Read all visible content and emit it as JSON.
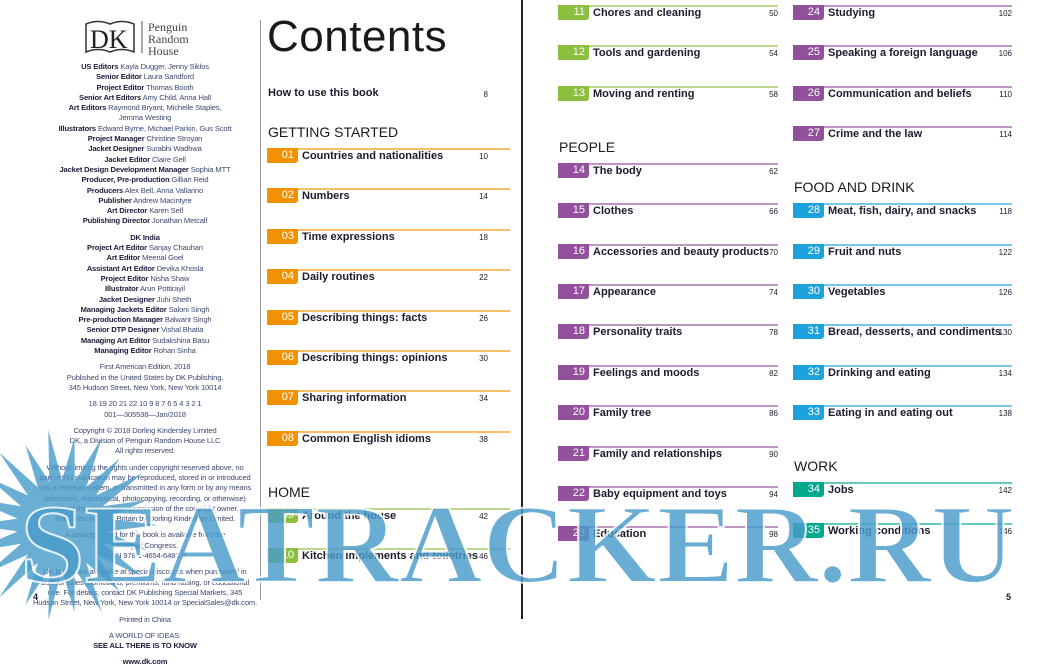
{
  "left_page": {
    "logo": {
      "dk": "DK",
      "publisher": [
        "Penguin",
        "Random",
        "House"
      ]
    },
    "credits_us": [
      {
        "role": "US Editors",
        "name": "Kayla Dugger, Jenny Siklos"
      },
      {
        "role": "Senior Editor",
        "name": "Laura Sandford"
      },
      {
        "role": "Project Editor",
        "name": "Thomas Booth"
      },
      {
        "role": "Senior Art Editors",
        "name": "Amy Child, Anna Hall"
      },
      {
        "role": "Art Editors",
        "name": "Raymond Bryant, Michelle Staples,"
      },
      {
        "role": "",
        "name": "Jemma Westing"
      },
      {
        "role": "Illustrators",
        "name": "Edward Byrne, Michael Parkin, Gus Scott"
      },
      {
        "role": "Project Manager",
        "name": "Christine Stroyan"
      },
      {
        "role": "Jacket Designer",
        "name": "Surabhi Wadhwa"
      },
      {
        "role": "Jacket Editor",
        "name": "Claire Gell"
      },
      {
        "role": "Jacket Design Development Manager",
        "name": "Sophia MTT"
      },
      {
        "role": "Producer, Pre-production",
        "name": "Gillian Reid"
      },
      {
        "role": "Producers",
        "name": "Alex Bell, Anna Vallarino"
      },
      {
        "role": "Publisher",
        "name": "Andrew Macintyre"
      },
      {
        "role": "Art Director",
        "name": "Karen Self"
      },
      {
        "role": "Publishing Director",
        "name": "Jonathan Metcalf"
      }
    ],
    "india_heading": "DK India",
    "credits_india": [
      {
        "role": "Project Art Editor",
        "name": "Sanjay Chauhan"
      },
      {
        "role": "Art Editor",
        "name": "Meenal Goel"
      },
      {
        "role": "Assistant Art Editor",
        "name": "Devika Khosla"
      },
      {
        "role": "Project Editor",
        "name": "Nisha Shaw"
      },
      {
        "role": "Illustrator",
        "name": "Arun Pottirayil"
      },
      {
        "role": "Jacket Designer",
        "name": "Juhi Sheth"
      },
      {
        "role": "Managing Jackets Editor",
        "name": "Saloni Singh"
      },
      {
        "role": "Pre-production Manager",
        "name": "Balwant Singh"
      },
      {
        "role": "Senior DTP Designer",
        "name": "Vishal Bhatia"
      },
      {
        "role": "Managing Art Editor",
        "name": "Sudakshina Basu"
      },
      {
        "role": "Managing Editor",
        "name": "Rohan Sinha"
      }
    ],
    "edition": [
      "First American Edition, 2018",
      "Published in the United States by DK Publishing,",
      "345 Hudson Street, New York, New York 10014"
    ],
    "printing": [
      "18 19 20 21 22   10 9 8 7 6 5 4 3 2 1",
      "001—305538—Jan/2018"
    ],
    "copyright": [
      "Copyright © 2018 Dorling Kindersley Limited",
      "DK, a Division of Penguin Random House LLC",
      "All rights reserved."
    ],
    "rights": [
      "Without limiting the rights under copyright reserved above, no",
      "part of this publication may be reproduced, stored in or introduced",
      "into a retrieval system, or transmitted in any form or by any means",
      "(electronic, mechanical, photocopying, recording, or otherwise)",
      "without the prior written permission of the copyright owner.",
      "Published in Great Britain by Dorling Kindersley Limited."
    ],
    "catalog": [
      "A catalog record for this book is available from the",
      "Library of Congress.",
      "ISBN 978-1-4654-6483-5"
    ],
    "special": [
      "DK books are available at special discounts when purchased in",
      "bulk for sales promotions, premiums, fund-raising, or educational",
      "use. For details, contact DK Publishing Special Markets, 345",
      "Hudson Street, New York, New York 10014 or SpecialSales@dk.com."
    ],
    "printed": "Printed in China",
    "slogan": [
      "A WORLD OF IDEAS:",
      "SEE ALL THERE IS TO KNOW"
    ],
    "website": "www.dk.com",
    "page_number": "4"
  },
  "contents": {
    "title": "Contents",
    "how_to": {
      "label": "How to use this book",
      "page": "8"
    },
    "colors": {
      "getting_started": "#f39200",
      "home": "#8cbf3f",
      "people": "#93509c",
      "food": "#1ea2dc",
      "work": "#00a88e"
    },
    "columns": [
      [
        {
          "heading": "GETTING STARTED",
          "color_key": "getting_started",
          "items": [
            {
              "num": "01",
              "label": "Countries and nationalities",
              "page": "10"
            },
            {
              "num": "02",
              "label": "Numbers",
              "page": "14"
            },
            {
              "num": "03",
              "label": "Time expressions",
              "page": "18"
            },
            {
              "num": "04",
              "label": "Daily routines",
              "page": "22"
            },
            {
              "num": "05",
              "label": "Describing things: facts",
              "page": "26"
            },
            {
              "num": "06",
              "label": "Describing things: opinions",
              "page": "30"
            },
            {
              "num": "07",
              "label": "Sharing information",
              "page": "34"
            },
            {
              "num": "08",
              "label": "Common English idioms",
              "page": "38"
            }
          ]
        },
        {
          "heading": "HOME",
          "color_key": "home",
          "items": [
            {
              "num": "09",
              "label": "Around the house",
              "page": "42"
            },
            {
              "num": "10",
              "label": "Kitchen implements and toiletries",
              "page": "46"
            }
          ]
        }
      ],
      [
        {
          "heading": "",
          "color_key": "home",
          "items": [
            {
              "num": "11",
              "label": "Chores and cleaning",
              "page": "50"
            },
            {
              "num": "12",
              "label": "Tools and gardening",
              "page": "54"
            },
            {
              "num": "13",
              "label": "Moving and renting",
              "page": "58"
            }
          ]
        },
        {
          "heading": "PEOPLE",
          "color_key": "people",
          "items": [
            {
              "num": "14",
              "label": "The body",
              "page": "62"
            },
            {
              "num": "15",
              "label": "Clothes",
              "page": "66"
            },
            {
              "num": "16",
              "label": "Accessories and beauty products",
              "page": "70"
            },
            {
              "num": "17",
              "label": "Appearance",
              "page": "74"
            },
            {
              "num": "18",
              "label": "Personality traits",
              "page": "78"
            },
            {
              "num": "19",
              "label": "Feelings and moods",
              "page": "82"
            },
            {
              "num": "20",
              "label": "Family tree",
              "page": "86"
            },
            {
              "num": "21",
              "label": "Family and relationships",
              "page": "90"
            },
            {
              "num": "22",
              "label": "Baby equipment and toys",
              "page": "94"
            },
            {
              "num": "23",
              "label": "Education",
              "page": "98"
            }
          ]
        }
      ],
      [
        {
          "heading": "",
          "color_key": "people",
          "items": [
            {
              "num": "24",
              "label": "Studying",
              "page": "102"
            },
            {
              "num": "25",
              "label": "Speaking a foreign language",
              "page": "106"
            },
            {
              "num": "26",
              "label": "Communication and beliefs",
              "page": "110"
            },
            {
              "num": "27",
              "label": "Crime and the law",
              "page": "114"
            }
          ]
        },
        {
          "heading": "FOOD AND DRINK",
          "color_key": "food",
          "items": [
            {
              "num": "28",
              "label": "Meat, fish, dairy, and snacks",
              "page": "118"
            },
            {
              "num": "29",
              "label": "Fruit and nuts",
              "page": "122"
            },
            {
              "num": "30",
              "label": "Vegetables",
              "page": "126"
            },
            {
              "num": "31",
              "label": "Bread, desserts, and condiments",
              "page": "130"
            },
            {
              "num": "32",
              "label": "Drinking and eating",
              "page": "134"
            },
            {
              "num": "33",
              "label": "Eating in and eating out",
              "page": "138"
            }
          ]
        },
        {
          "heading": "WORK",
          "color_key": "work",
          "items": [
            {
              "num": "34",
              "label": "Jobs",
              "page": "142"
            },
            {
              "num": "35",
              "label": "Working conditions",
              "page": "146"
            }
          ]
        }
      ]
    ],
    "page_number": "5"
  },
  "watermark": {
    "text": "SEATRACKER.RU",
    "color": "#4a9ccb"
  }
}
